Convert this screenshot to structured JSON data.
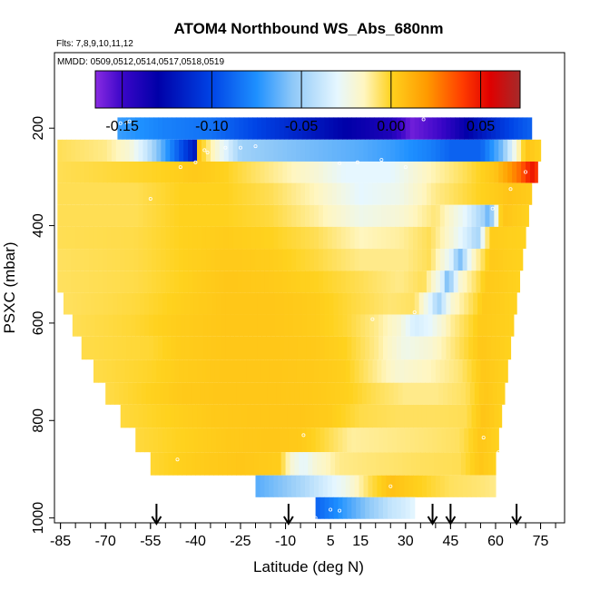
{
  "chart_data": {
    "type": "heatmap",
    "title": "ATOM4 Northbound WS_Abs_680nm",
    "subtitle_flights": "Flts: 7,8,9,10,11,12",
    "subtitle_dates": "MMDD: 0509,0512,0514,0517,0518,0519",
    "xlabel": "Latitude (deg N)",
    "ylabel": "PSXC (mbar)",
    "xlim": [
      -87,
      83
    ],
    "ylim": [
      1010,
      45
    ],
    "x_ticks": [
      -85,
      -70,
      -55,
      -40,
      -25,
      -10,
      5,
      15,
      30,
      45,
      60,
      75
    ],
    "x_tick_labels": [
      "-85",
      "-70",
      "-55",
      "-40",
      "-25",
      "-10",
      "5",
      "15",
      "30",
      "45",
      "60",
      "75"
    ],
    "y_ticks": [
      200,
      400,
      600,
      800,
      1000
    ],
    "y_tick_labels": [
      "200",
      "400",
      "600",
      "800",
      "1000"
    ],
    "colorbar": {
      "range": [
        -0.165,
        0.072
      ],
      "ticks": [
        -0.15,
        -0.1,
        -0.05,
        0.0,
        0.05
      ],
      "tick_labels": [
        "-0.15",
        "-0.10",
        "-0.05",
        "0.00",
        "0.05"
      ],
      "colors": [
        {
          "value": -0.165,
          "color": "#8a2be2"
        },
        {
          "value": -0.15,
          "color": "#3a06c8"
        },
        {
          "value": -0.13,
          "color": "#0000a8"
        },
        {
          "value": -0.1,
          "color": "#0044e6"
        },
        {
          "value": -0.075,
          "color": "#1e90ff"
        },
        {
          "value": -0.055,
          "color": "#8ec8f8"
        },
        {
          "value": -0.03,
          "color": "#e6f7ff"
        },
        {
          "value": -0.015,
          "color": "#fff6c0"
        },
        {
          "value": 0.0,
          "color": "#ffd21e"
        },
        {
          "value": 0.02,
          "color": "#ff9a00"
        },
        {
          "value": 0.04,
          "color": "#ff3c00"
        },
        {
          "value": 0.055,
          "color": "#e00000"
        },
        {
          "value": 0.072,
          "color": "#a52a2a"
        }
      ]
    },
    "flight_arrows_latitude": [
      -53,
      -9,
      39,
      45,
      67
    ],
    "rows": [
      {
        "p": 200,
        "lat_min": -66,
        "lat_max": 72,
        "nodes": [
          [
            -66,
            -0.07
          ],
          [
            -50,
            -0.08
          ],
          [
            -35,
            -0.085
          ],
          [
            -20,
            -0.1
          ],
          [
            -5,
            -0.115
          ],
          [
            10,
            -0.13
          ],
          [
            25,
            -0.14
          ],
          [
            32,
            -0.16
          ],
          [
            42,
            -0.15
          ],
          [
            55,
            -0.12
          ],
          [
            65,
            -0.1
          ],
          [
            72,
            -0.09
          ]
        ]
      },
      {
        "p": 247,
        "lat_min": -86,
        "lat_max": 75,
        "nodes": [
          [
            -86,
            -0.005
          ],
          [
            -70,
            -0.01
          ],
          [
            -62,
            -0.02
          ],
          [
            -56,
            -0.04
          ],
          [
            -50,
            -0.07
          ],
          [
            -46,
            -0.09
          ],
          [
            -40,
            -0.12
          ],
          [
            -39,
            0.005
          ],
          [
            -33,
            -0.02
          ],
          [
            -25,
            -0.05
          ],
          [
            -15,
            -0.055
          ],
          [
            0,
            -0.06
          ],
          [
            15,
            -0.065
          ],
          [
            25,
            -0.07
          ],
          [
            38,
            -0.08
          ],
          [
            45,
            -0.09
          ],
          [
            55,
            -0.09
          ],
          [
            62,
            -0.06
          ],
          [
            70,
            0.005
          ],
          [
            75,
            0.0
          ]
        ]
      },
      {
        "p": 290,
        "lat_min": -86,
        "lat_max": 74,
        "nodes": [
          [
            -86,
            -0.005
          ],
          [
            -70,
            -0.003
          ],
          [
            -50,
            0.0
          ],
          [
            -40,
            0.003
          ],
          [
            -30,
            0.0
          ],
          [
            -15,
            -0.01
          ],
          [
            0,
            -0.02
          ],
          [
            10,
            -0.03
          ],
          [
            25,
            -0.03
          ],
          [
            38,
            -0.015
          ],
          [
            50,
            -0.005
          ],
          [
            60,
            0.005
          ],
          [
            68,
            0.03
          ],
          [
            72,
            0.05
          ],
          [
            74,
            0.04
          ]
        ]
      },
      {
        "p": 335,
        "lat_min": -86,
        "lat_max": 72,
        "nodes": [
          [
            -86,
            -0.005
          ],
          [
            -60,
            -0.005
          ],
          [
            -45,
            0.0
          ],
          [
            -30,
            0.0
          ],
          [
            -15,
            -0.005
          ],
          [
            0,
            -0.015
          ],
          [
            15,
            -0.03
          ],
          [
            28,
            -0.025
          ],
          [
            40,
            -0.01
          ],
          [
            55,
            0.0
          ],
          [
            65,
            0.005
          ],
          [
            72,
            0.002
          ]
        ]
      },
      {
        "p": 380,
        "lat_min": -86,
        "lat_max": 71,
        "nodes": [
          [
            -86,
            -0.005
          ],
          [
            -60,
            -0.005
          ],
          [
            -45,
            0.0
          ],
          [
            -30,
            0.0
          ],
          [
            -15,
            -0.003
          ],
          [
            0,
            -0.012
          ],
          [
            15,
            -0.025
          ],
          [
            28,
            -0.02
          ],
          [
            40,
            -0.008
          ],
          [
            50,
            -0.03
          ],
          [
            56,
            -0.05
          ],
          [
            58,
            -0.065
          ],
          [
            62,
            0.005
          ],
          [
            71,
            0.0
          ]
        ]
      },
      {
        "p": 425,
        "lat_min": -86,
        "lat_max": 70,
        "nodes": [
          [
            -86,
            -0.005
          ],
          [
            -60,
            -0.004
          ],
          [
            -45,
            0.0
          ],
          [
            -30,
            0.002
          ],
          [
            -15,
            0.0
          ],
          [
            0,
            -0.005
          ],
          [
            15,
            -0.015
          ],
          [
            28,
            -0.012
          ],
          [
            38,
            -0.005
          ],
          [
            45,
            -0.02
          ],
          [
            52,
            -0.04
          ],
          [
            54,
            -0.05
          ],
          [
            58,
            0.002
          ],
          [
            70,
            0.0
          ]
        ]
      },
      {
        "p": 470,
        "lat_min": -86,
        "lat_max": 69,
        "nodes": [
          [
            -86,
            -0.006
          ],
          [
            -60,
            -0.004
          ],
          [
            -45,
            0.0
          ],
          [
            -30,
            0.003
          ],
          [
            -15,
            0.002
          ],
          [
            0,
            -0.003
          ],
          [
            15,
            -0.01
          ],
          [
            30,
            -0.01
          ],
          [
            38,
            -0.005
          ],
          [
            45,
            -0.03
          ],
          [
            48,
            -0.06
          ],
          [
            52,
            -0.02
          ],
          [
            58,
            0.003
          ],
          [
            69,
            0.0
          ]
        ]
      },
      {
        "p": 515,
        "lat_min": -86,
        "lat_max": 68,
        "nodes": [
          [
            -86,
            -0.006
          ],
          [
            -60,
            -0.004
          ],
          [
            -45,
            0.0
          ],
          [
            -30,
            0.004
          ],
          [
            -15,
            0.003
          ],
          [
            0,
            0.0
          ],
          [
            15,
            -0.005
          ],
          [
            28,
            -0.01
          ],
          [
            36,
            -0.005
          ],
          [
            42,
            -0.03
          ],
          [
            44,
            -0.06
          ],
          [
            48,
            -0.02
          ],
          [
            57,
            0.003
          ],
          [
            68,
            0.0
          ]
        ]
      },
      {
        "p": 560,
        "lat_min": -84,
        "lat_max": 67,
        "nodes": [
          [
            -84,
            -0.006
          ],
          [
            -60,
            -0.003
          ],
          [
            -45,
            0.001
          ],
          [
            -30,
            0.004
          ],
          [
            -15,
            0.004
          ],
          [
            0,
            0.002
          ],
          [
            12,
            -0.003
          ],
          [
            25,
            -0.008
          ],
          [
            33,
            -0.006
          ],
          [
            38,
            -0.03
          ],
          [
            41,
            -0.05
          ],
          [
            45,
            -0.02
          ],
          [
            56,
            0.003
          ],
          [
            67,
            0.0
          ]
        ]
      },
      {
        "p": 605,
        "lat_min": -81,
        "lat_max": 66,
        "nodes": [
          [
            -81,
            -0.005
          ],
          [
            -60,
            -0.002
          ],
          [
            -45,
            0.002
          ],
          [
            -30,
            0.004
          ],
          [
            -15,
            0.004
          ],
          [
            0,
            0.002
          ],
          [
            10,
            -0.002
          ],
          [
            20,
            -0.01
          ],
          [
            28,
            -0.02
          ],
          [
            33,
            -0.035
          ],
          [
            38,
            -0.03
          ],
          [
            45,
            -0.012
          ],
          [
            55,
            0.003
          ],
          [
            66,
            0.0
          ]
        ]
      },
      {
        "p": 650,
        "lat_min": -78,
        "lat_max": 65,
        "nodes": [
          [
            -78,
            -0.004
          ],
          [
            -55,
            -0.002
          ],
          [
            -45,
            0.002
          ],
          [
            -30,
            0.004
          ],
          [
            -15,
            0.004
          ],
          [
            0,
            0.003
          ],
          [
            10,
            0.0
          ],
          [
            20,
            -0.01
          ],
          [
            30,
            -0.025
          ],
          [
            38,
            -0.02
          ],
          [
            45,
            -0.01
          ],
          [
            55,
            0.004
          ],
          [
            65,
            0.0
          ]
        ]
      },
      {
        "p": 700,
        "lat_min": -74,
        "lat_max": 64,
        "nodes": [
          [
            -74,
            -0.004
          ],
          [
            -55,
            -0.001
          ],
          [
            -45,
            0.002
          ],
          [
            -30,
            0.004
          ],
          [
            -15,
            0.004
          ],
          [
            0,
            0.003
          ],
          [
            10,
            0.001
          ],
          [
            18,
            -0.008
          ],
          [
            28,
            -0.02
          ],
          [
            38,
            -0.015
          ],
          [
            48,
            -0.008
          ],
          [
            56,
            0.004
          ],
          [
            64,
            0.0
          ]
        ]
      },
      {
        "p": 745,
        "lat_min": -70,
        "lat_max": 63,
        "nodes": [
          [
            -70,
            -0.004
          ],
          [
            -55,
            0.0
          ],
          [
            -45,
            0.003
          ],
          [
            -30,
            0.004
          ],
          [
            -15,
            0.004
          ],
          [
            0,
            0.003
          ],
          [
            10,
            0.001
          ],
          [
            20,
            -0.005
          ],
          [
            30,
            -0.01
          ],
          [
            40,
            -0.01
          ],
          [
            50,
            -0.006
          ],
          [
            56,
            0.004
          ],
          [
            63,
            0.0
          ]
        ]
      },
      {
        "p": 790,
        "lat_min": -65,
        "lat_max": 62,
        "nodes": [
          [
            -65,
            -0.003
          ],
          [
            -50,
            0.0
          ],
          [
            -35,
            0.003
          ],
          [
            -20,
            0.004
          ],
          [
            -5,
            0.004
          ],
          [
            5,
            0.002
          ],
          [
            15,
            -0.004
          ],
          [
            28,
            -0.006
          ],
          [
            40,
            -0.006
          ],
          [
            50,
            -0.005
          ],
          [
            56,
            0.005
          ],
          [
            62,
            0.0
          ]
        ]
      },
      {
        "p": 840,
        "lat_min": -60,
        "lat_max": 61,
        "nodes": [
          [
            -60,
            -0.003
          ],
          [
            -45,
            0.0
          ],
          [
            -30,
            0.003
          ],
          [
            -15,
            0.004
          ],
          [
            -5,
            0.003
          ],
          [
            3,
            -0.003
          ],
          [
            12,
            -0.012
          ],
          [
            25,
            -0.01
          ],
          [
            38,
            -0.008
          ],
          [
            48,
            -0.006
          ],
          [
            55,
            0.004
          ],
          [
            61,
            0.0
          ]
        ]
      },
      {
        "p": 890,
        "lat_min": -55,
        "lat_max": 60,
        "nodes": [
          [
            -55,
            -0.002
          ],
          [
            -40,
            0.002
          ],
          [
            -25,
            0.004
          ],
          [
            -12,
            0.002
          ],
          [
            -8,
            -0.02
          ],
          [
            -4,
            -0.03
          ],
          [
            0,
            -0.02
          ],
          [
            8,
            -0.01
          ],
          [
            20,
            -0.008
          ],
          [
            35,
            -0.006
          ],
          [
            48,
            -0.005
          ],
          [
            55,
            0.004
          ],
          [
            60,
            0.0
          ]
        ]
      },
      {
        "p": 935,
        "lat_min": -20,
        "lat_max": 60,
        "nodes": [
          [
            -20,
            -0.065
          ],
          [
            -10,
            -0.055
          ],
          [
            0,
            -0.04
          ],
          [
            10,
            -0.025
          ],
          [
            18,
            -0.005
          ],
          [
            25,
            0.006
          ],
          [
            32,
            0.002
          ],
          [
            45,
            -0.006
          ],
          [
            55,
            -0.008
          ],
          [
            60,
            -0.01
          ]
        ]
      },
      {
        "p": 980,
        "lat_min": 0,
        "lat_max": 33,
        "nodes": [
          [
            0,
            -0.09
          ],
          [
            5,
            -0.08
          ],
          [
            10,
            -0.07
          ],
          [
            15,
            -0.06
          ],
          [
            20,
            -0.05
          ],
          [
            25,
            -0.04
          ],
          [
            30,
            -0.035
          ],
          [
            33,
            -0.03
          ]
        ]
      }
    ],
    "points": [
      [
        -65,
        190
      ],
      [
        -63,
        188
      ],
      [
        -62,
        186
      ],
      [
        -36,
        250
      ],
      [
        -30,
        240
      ],
      [
        -25,
        240
      ],
      [
        -20,
        237
      ],
      [
        -40,
        270
      ],
      [
        -45,
        280
      ],
      [
        -37,
        245
      ],
      [
        -55,
        345
      ],
      [
        8,
        272
      ],
      [
        14,
        270
      ],
      [
        22,
        265
      ],
      [
        30,
        280
      ],
      [
        70,
        290
      ],
      [
        65,
        325
      ],
      [
        59,
        365
      ],
      [
        19,
        592
      ],
      [
        33,
        578
      ],
      [
        -4,
        830
      ],
      [
        56,
        835
      ],
      [
        61,
        865
      ],
      [
        -46,
        880
      ],
      [
        25,
        935
      ],
      [
        5,
        983
      ],
      [
        -3,
        990
      ],
      [
        0,
        1000
      ],
      [
        8,
        985
      ],
      [
        36,
        182
      ]
    ]
  }
}
